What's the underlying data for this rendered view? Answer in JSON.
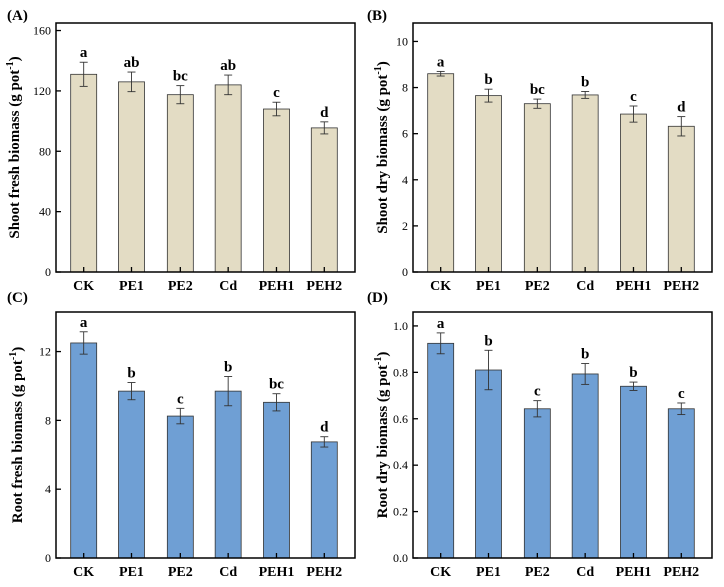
{
  "chart_data": [
    {
      "type": "bar",
      "panel_label": "(A)",
      "ylabel_main": "Shoot fresh biomass (g pot",
      "ylabel_sup": "-1",
      "ylabel_end": ")",
      "categories": [
        "CK",
        "PE1",
        "PE2",
        "Cd",
        "PEH1",
        "PEH2"
      ],
      "values": [
        131,
        126,
        117.5,
        124,
        108,
        95.5
      ],
      "errors": [
        8,
        6.5,
        6,
        6.5,
        4.5,
        4
      ],
      "significance": [
        "a",
        "ab",
        "bc",
        "ab",
        "c",
        "d"
      ],
      "ylim": [
        0,
        165
      ],
      "yticks": [
        "0",
        "40",
        "80",
        "120",
        "160"
      ],
      "ytick_values": [
        0,
        40,
        80,
        120,
        160
      ],
      "color": "#e3dcc4"
    },
    {
      "type": "bar",
      "panel_label": "(B)",
      "ylabel_main": "Shoot dry biomass (g pot",
      "ylabel_sup": "-1",
      "ylabel_end": ")",
      "categories": [
        "CK",
        "PE1",
        "PE2",
        "Cd",
        "PEH1",
        "PEH2"
      ],
      "values": [
        8.6,
        7.65,
        7.3,
        7.68,
        6.85,
        6.32
      ],
      "errors": [
        0.1,
        0.28,
        0.2,
        0.15,
        0.35,
        0.42
      ],
      "significance": [
        "a",
        "b",
        "bc",
        "b",
        "c",
        "d"
      ],
      "ylim": [
        0,
        10.8
      ],
      "yticks": [
        "0",
        "2",
        "4",
        "6",
        "8",
        "10"
      ],
      "ytick_values": [
        0,
        2,
        4,
        6,
        8,
        10
      ],
      "color": "#e3dcc4"
    },
    {
      "type": "bar",
      "panel_label": "(C)",
      "ylabel_main": "Root fresh biomass (g pot",
      "ylabel_sup": "-1",
      "ylabel_end": ")",
      "categories": [
        "CK",
        "PE1",
        "PE2",
        "Cd",
        "PEH1",
        "PEH2"
      ],
      "values": [
        12.5,
        9.7,
        8.25,
        9.7,
        9.05,
        6.75
      ],
      "errors": [
        0.65,
        0.5,
        0.45,
        0.85,
        0.5,
        0.3
      ],
      "significance": [
        "a",
        "b",
        "c",
        "b",
        "bc",
        "d"
      ],
      "ylim": [
        0,
        14.3
      ],
      "yticks": [
        "0",
        "4",
        "8",
        "12"
      ],
      "ytick_values": [
        0,
        4,
        8,
        12
      ],
      "color": "#6f9fd4"
    },
    {
      "type": "bar",
      "panel_label": "(D)",
      "ylabel_main": "Root dry biomass (g pot",
      "ylabel_sup": "-1",
      "ylabel_end": ")",
      "categories": [
        "CK",
        "PE1",
        "PE2",
        "Cd",
        "PEH1",
        "PEH2"
      ],
      "values": [
        0.925,
        0.81,
        0.643,
        0.793,
        0.74,
        0.643
      ],
      "errors": [
        0.045,
        0.085,
        0.035,
        0.045,
        0.018,
        0.025
      ],
      "significance": [
        "a",
        "b",
        "c",
        "b",
        "b",
        "c"
      ],
      "ylim": [
        0,
        1.06
      ],
      "yticks": [
        "0.0",
        "0.2",
        "0.4",
        "0.6",
        "0.8",
        "1.0"
      ],
      "ytick_values": [
        0,
        0.2,
        0.4,
        0.6,
        0.8,
        1.0
      ],
      "color": "#6f9fd4"
    }
  ]
}
